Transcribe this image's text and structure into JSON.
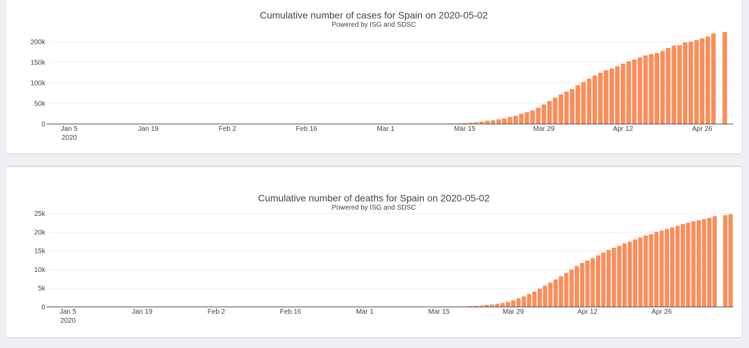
{
  "colors": {
    "bar": "#fc8d59",
    "grid": "#eeeeee",
    "axis": "#444444"
  },
  "chart_data": [
    {
      "type": "bar",
      "title": "Cumulative number of cases for Spain on 2020-05-02",
      "subtitle": "Powered by ISG and SDSC",
      "xlabel": "",
      "ylabel": "",
      "x_start": "2020-01-02",
      "x_tick_labels": [
        "Jan 5",
        "Jan 19",
        "Feb 2",
        "Feb 16",
        "Mar 1",
        "Mar 15",
        "Mar 29",
        "Apr 12",
        "Apr 26"
      ],
      "x_tick_sublabel": "2020",
      "y_ticks": [
        0,
        50000,
        100000,
        150000,
        200000
      ],
      "y_tick_labels": [
        "0",
        "50k",
        "100k",
        "150k",
        "200k"
      ],
      "ylim": [
        0,
        215000
      ],
      "grid": true,
      "values": [
        0,
        0,
        0,
        0,
        0,
        0,
        0,
        0,
        0,
        0,
        0,
        0,
        0,
        0,
        0,
        0,
        0,
        0,
        0,
        0,
        0,
        0,
        0,
        0,
        0,
        0,
        0,
        0,
        0,
        0,
        0,
        1,
        1,
        1,
        1,
        1,
        1,
        1,
        1,
        1,
        2,
        2,
        2,
        2,
        2,
        2,
        2,
        2,
        2,
        2,
        2,
        2,
        2,
        2,
        2,
        2,
        2,
        3,
        12,
        25,
        32,
        45,
        66,
        83,
        114,
        151,
        200,
        261,
        374,
        430,
        589,
        1204,
        1639,
        2140,
        2965,
        4231,
        5753,
        7753,
        9191,
        11178,
        13716,
        17147,
        19980,
        24926,
        28572,
        33089,
        39673,
        47610,
        56188,
        64059,
        72248,
        78797,
        85195,
        94417,
        102136,
        110238,
        117710,
        124736,
        130759,
        135032,
        140510,
        146690,
        152446,
        157022,
        161852,
        166831,
        170099,
        172541,
        177644,
        184948,
        190839,
        191726,
        198674,
        200210,
        204178,
        208389,
        213024,
        219764,
        0,
        223759,
        0
      ],
      "_note": ""
    },
    {
      "type": "bar",
      "title": "Cumulative number of deaths for Spain on 2020-05-02",
      "subtitle": "Powered by ISG and SDSC",
      "xlabel": "",
      "ylabel": "",
      "x_start": "2020-01-02",
      "x_tick_labels": [
        "Jan 5",
        "Jan 19",
        "Feb 2",
        "Feb 16",
        "Mar 1",
        "Mar 15",
        "Mar 29",
        "Apr 12",
        "Apr 26"
      ],
      "x_tick_sublabel": "2020",
      "y_ticks": [
        0,
        5000,
        10000,
        15000,
        20000,
        25000
      ],
      "y_tick_labels": [
        "0",
        "5k",
        "10k",
        "15k",
        "20k",
        "25k"
      ],
      "ylim": [
        0,
        25300
      ],
      "grid": true,
      "values": [
        0,
        0,
        0,
        0,
        0,
        0,
        0,
        0,
        0,
        0,
        0,
        0,
        0,
        0,
        0,
        0,
        0,
        0,
        0,
        0,
        0,
        0,
        0,
        0,
        0,
        0,
        0,
        0,
        0,
        0,
        0,
        0,
        0,
        0,
        0,
        0,
        0,
        0,
        0,
        0,
        0,
        0,
        0,
        0,
        0,
        0,
        0,
        0,
        0,
        0,
        0,
        0,
        0,
        0,
        0,
        0,
        0,
        0,
        0,
        0,
        0,
        0,
        0,
        0,
        0,
        0,
        0,
        0,
        1,
        2,
        3,
        5,
        10,
        17,
        28,
        35,
        54,
        55,
        133,
        195,
        289,
        342,
        533,
        623,
        830,
        1043,
        1375,
        1772,
        2311,
        2808,
        3434,
        4089,
        4858,
        5690,
        6528,
        7340,
        8189,
        9053,
        10003,
        10935,
        11744,
        12418,
        13055,
        13798,
        14555,
        15238,
        15843,
        16353,
        16972,
        17489,
        18056,
        18579,
        19130,
        19478,
        20043,
        20453,
        20852,
        21282,
        21717,
        22157,
        22524,
        22902,
        23190,
        23521,
        23822,
        24275,
        0,
        24543,
        24824
      ],
      "_note": ""
    }
  ]
}
